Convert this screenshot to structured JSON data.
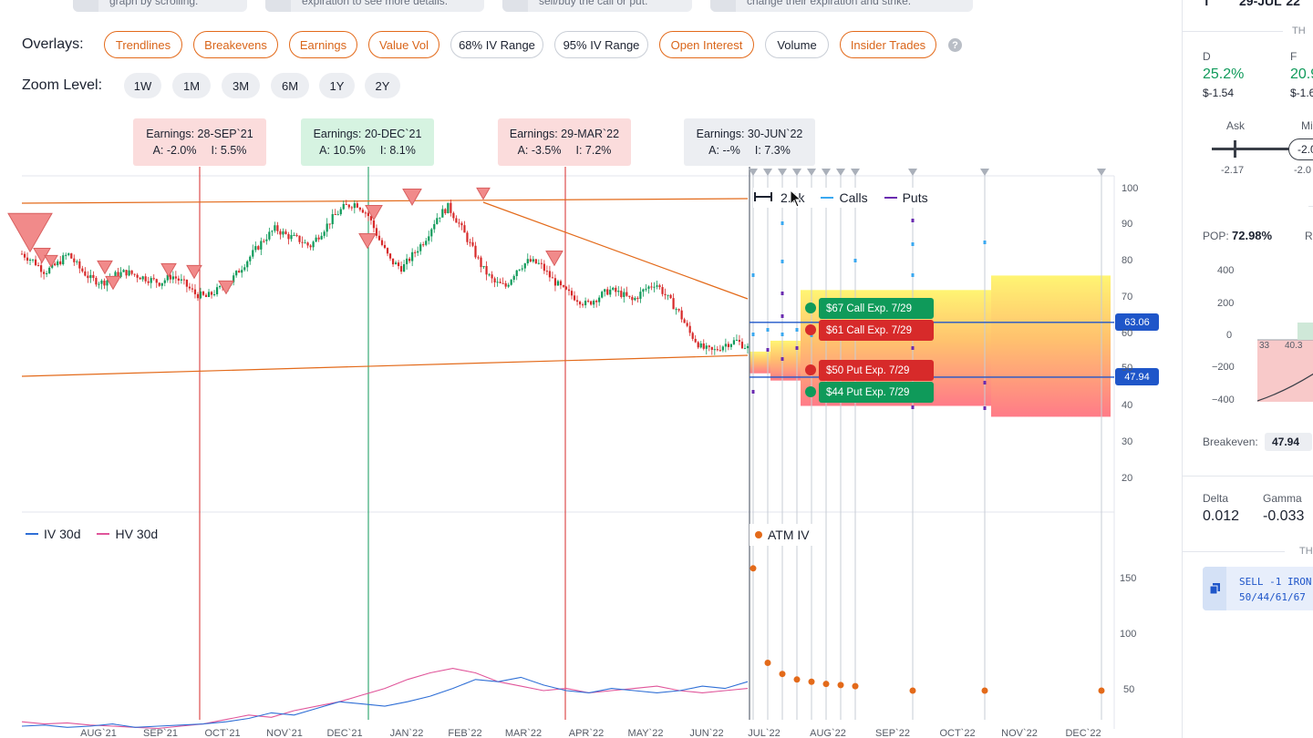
{
  "hints": [
    {
      "text": "graph by scrolling."
    },
    {
      "text": "expiration to see more details."
    },
    {
      "text": "sell/buy the call or put."
    },
    {
      "text": "change their expiration and strike."
    }
  ],
  "overlays": {
    "label": "Overlays:",
    "items": [
      {
        "label": "Trendlines",
        "active": true
      },
      {
        "label": "Breakevens",
        "active": true
      },
      {
        "label": "Earnings",
        "active": true
      },
      {
        "label": "Value Vol",
        "active": true
      },
      {
        "label": "68% IV Range",
        "active": false
      },
      {
        "label": "95% IV Range",
        "active": false
      },
      {
        "label": "Open Interest",
        "active": true
      },
      {
        "label": "Volume",
        "active": false
      },
      {
        "label": "Insider Trades",
        "active": true
      }
    ],
    "help_icon": "question-icon",
    "help_text": "?"
  },
  "zoom": {
    "label": "Zoom Level:",
    "items": [
      "1W",
      "1M",
      "3M",
      "6M",
      "1Y",
      "2Y"
    ]
  },
  "earnings": [
    {
      "title": "Earnings: 28-SEP`21",
      "actual": "A: -2.0%",
      "implied": "I: 5.5%",
      "tone": "neg"
    },
    {
      "title": "Earnings: 20-DEC`21",
      "actual": "A: 10.5%",
      "implied": "I: 8.1%",
      "tone": "pos"
    },
    {
      "title": "Earnings: 29-MAR`22",
      "actual": "A: -3.5%",
      "implied": "I: 7.2%",
      "tone": "neg"
    },
    {
      "title": "Earnings: 30-JUN`22",
      "actual": "A: --%",
      "implied": "I: 7.3%",
      "tone": "neu"
    }
  ],
  "oi_legend": {
    "size_label": "2.1k",
    "calls": "Calls",
    "puts": "Puts"
  },
  "orders": [
    {
      "label": "$67 Call Exp. 7/29",
      "color": "green"
    },
    {
      "label": "$61 Call Exp. 7/29",
      "color": "red"
    },
    {
      "label": "$50 Put Exp. 7/29",
      "color": "red"
    },
    {
      "label": "$44 Put Exp. 7/29",
      "color": "green"
    }
  ],
  "breakeven_flags": {
    "upper": "63.06",
    "lower": "47.94"
  },
  "vol_legend": {
    "iv": "IV 30d",
    "hv": "HV 30d",
    "atm": "ATM IV"
  },
  "colors": {
    "accent": "#e36a1a",
    "up": "#0f9a5a",
    "down": "#d72a2a",
    "breakeven": "#1f56c9",
    "iv_line": "#2f6fd6",
    "hv_line": "#e0559a",
    "calls": "#3aa8f0",
    "puts": "#6a2bb0"
  },
  "chart_data": {
    "type": "candlestick",
    "price_axis": {
      "ticks": [
        "100",
        "90",
        "80",
        "70",
        "60",
        "50",
        "40",
        "30",
        "20"
      ],
      "ylim": [
        20,
        100
      ]
    },
    "vol_axis": {
      "ticks": [
        "150",
        "100",
        "50"
      ]
    },
    "x_ticks": [
      "AUG`21",
      "SEP`21",
      "OCT`21",
      "NOV`21",
      "DEC`21",
      "JAN`22",
      "FEB`22",
      "MAR`22",
      "APR`22",
      "MAY`22",
      "JUN`22",
      "JUL`22",
      "AUG`22",
      "SEP`22",
      "OCT`22",
      "NOV`22",
      "DEC`22"
    ],
    "price_path": [
      [
        0,
        82
      ],
      [
        5,
        80
      ],
      [
        10,
        77
      ],
      [
        15,
        79
      ],
      [
        20,
        82
      ],
      [
        25,
        78
      ],
      [
        30,
        75
      ],
      [
        35,
        74
      ],
      [
        40,
        76
      ],
      [
        45,
        77
      ],
      [
        50,
        76
      ],
      [
        55,
        75
      ],
      [
        60,
        74
      ],
      [
        65,
        76
      ],
      [
        70,
        74
      ],
      [
        75,
        71
      ],
      [
        80,
        70
      ],
      [
        85,
        72
      ],
      [
        90,
        74
      ],
      [
        95,
        78
      ],
      [
        100,
        82
      ],
      [
        105,
        86
      ],
      [
        110,
        89
      ],
      [
        115,
        87
      ],
      [
        120,
        86
      ],
      [
        125,
        84
      ],
      [
        130,
        88
      ],
      [
        135,
        92
      ],
      [
        140,
        95
      ],
      [
        145,
        96
      ],
      [
        150,
        93
      ],
      [
        155,
        86
      ],
      [
        160,
        80
      ],
      [
        165,
        78
      ],
      [
        170,
        82
      ],
      [
        175,
        86
      ],
      [
        180,
        92
      ],
      [
        185,
        95
      ],
      [
        190,
        90
      ],
      [
        195,
        84
      ],
      [
        200,
        78
      ],
      [
        205,
        74
      ],
      [
        210,
        73
      ],
      [
        215,
        78
      ],
      [
        220,
        80
      ],
      [
        225,
        79
      ],
      [
        230,
        75
      ],
      [
        235,
        72
      ],
      [
        240,
        70
      ],
      [
        245,
        68
      ],
      [
        250,
        70
      ],
      [
        255,
        72
      ],
      [
        260,
        71
      ],
      [
        265,
        69
      ],
      [
        270,
        72
      ],
      [
        275,
        74
      ],
      [
        280,
        70
      ],
      [
        285,
        66
      ],
      [
        290,
        60
      ],
      [
        295,
        56
      ],
      [
        300,
        55
      ],
      [
        305,
        57
      ],
      [
        310,
        58
      ],
      [
        315,
        56
      ]
    ],
    "iv_30d": [
      18,
      19,
      17,
      18,
      20,
      17,
      18,
      19,
      20,
      22,
      25,
      30,
      28,
      34,
      40,
      38,
      36,
      40,
      45,
      52,
      60,
      58,
      62,
      55,
      50,
      48,
      52,
      50,
      48,
      50,
      54,
      52,
      58
    ],
    "hv_30d": [
      22,
      20,
      21,
      19,
      18,
      17,
      16,
      18,
      20,
      24,
      28,
      26,
      32,
      36,
      40,
      46,
      52,
      60,
      66,
      70,
      66,
      58,
      54,
      50,
      52,
      48,
      50,
      52,
      54,
      50,
      48,
      50,
      52
    ],
    "atm_iv": [
      160,
      75,
      65,
      60,
      58,
      56,
      55,
      54,
      50,
      50,
      50
    ],
    "breakevens": {
      "upper": 63.06,
      "lower": 47.94
    }
  },
  "side_panel": {
    "header_date": "29-JUL`22",
    "header_prefix": "T",
    "section_label": "TH",
    "d_label": "D",
    "d_value": "25.2%",
    "d_sub": "$-1.54",
    "f_label": "F",
    "f_value": "20.9",
    "f_sub": "$-1.6",
    "ask_label": "Ask",
    "mid_label": "Mi",
    "ask_value": "-2.17",
    "mid_value": "-2.0",
    "mid_pill": "-2.0",
    "pop_label": "POP:",
    "pop_value": "72.98%",
    "r_label": "R",
    "pl_ticks": [
      "400",
      "200",
      "0",
      "−200",
      "−400"
    ],
    "pl_x": [
      "33",
      "40.3"
    ],
    "breakeven_label": "Breakeven:",
    "breakeven_value": "47.94",
    "delta_label": "Delta",
    "delta_value": "0.012",
    "gamma_label": "Gamma",
    "gamma_value": "-0.033",
    "section2_label": "TH",
    "trade_line1": "SELL -1 IRON",
    "trade_line2": "50/44/61/67",
    "copy_icon": "copy-icon"
  }
}
